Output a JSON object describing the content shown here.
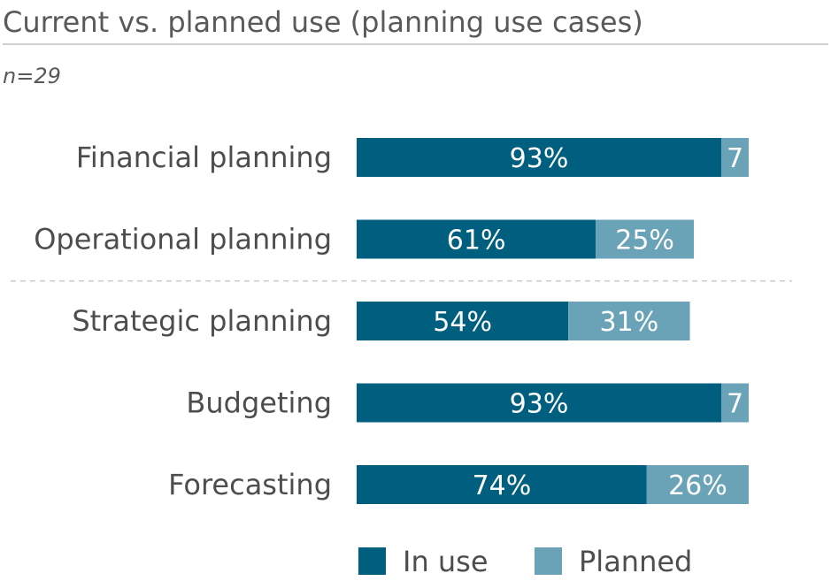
{
  "chart_data": {
    "type": "bar",
    "orientation": "horizontal",
    "stacked": true,
    "title": "Current vs. planned use (planning use cases)",
    "subtitle": "n=29",
    "categories": [
      "Financial planning",
      "Operational planning",
      "Strategic planning",
      "Budgeting",
      "Forecasting"
    ],
    "series": [
      {
        "name": "In use",
        "color": "#005f7f",
        "values": [
          93,
          61,
          54,
          93,
          74
        ],
        "labels": [
          "93%",
          "61%",
          "54%",
          "93%",
          "74%"
        ]
      },
      {
        "name": "Planned",
        "color": "#6aa3b8",
        "values": [
          7,
          25,
          31,
          7,
          26
        ],
        "labels": [
          "7",
          "25%",
          "31%",
          "7",
          "26%"
        ]
      }
    ],
    "xlim": [
      0,
      100
    ],
    "grid": false,
    "legend_position": "bottom",
    "separator_after_category": 1
  },
  "colors": {
    "title": "#58595b",
    "labels": "#4d4d4f",
    "rule": "#cfcfcf",
    "separator": "#cccccc"
  }
}
